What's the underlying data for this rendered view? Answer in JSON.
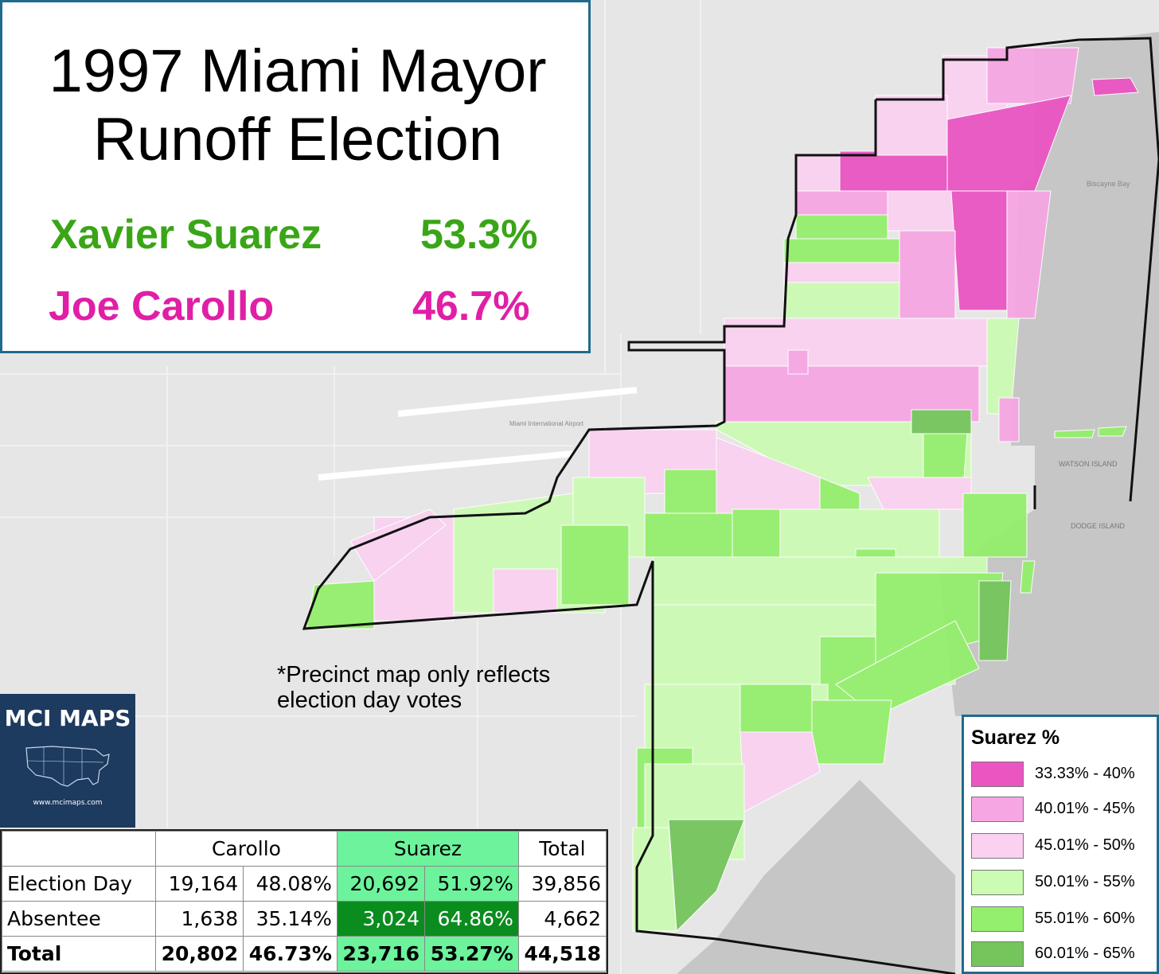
{
  "title": {
    "line1": "1997 Miami Mayor",
    "line2": "Runoff Election"
  },
  "candidates": [
    {
      "name": "Xavier Suarez",
      "pct": "53.3%",
      "color": "#3aa517"
    },
    {
      "name": "Joe Carollo",
      "pct": "46.7%",
      "color": "#e01fa6"
    }
  ],
  "note": {
    "line1": "*Precinct map only reflects",
    "line2": "election day votes"
  },
  "logo": {
    "title": "MCI MAPS",
    "url": "www.mcimaps.com"
  },
  "results_table": {
    "headers": [
      "Carollo",
      "Suarez",
      "Total"
    ],
    "rows": [
      {
        "label": "Election Day",
        "carollo_votes": "19,164",
        "carollo_pct": "48.08%",
        "suarez_votes": "20,692",
        "suarez_pct": "51.92%",
        "total": "39,856"
      },
      {
        "label": "Absentee",
        "carollo_votes": "1,638",
        "carollo_pct": "35.14%",
        "suarez_votes": "3,024",
        "suarez_pct": "64.86%",
        "total": "4,662"
      },
      {
        "label": "Total",
        "carollo_votes": "20,802",
        "carollo_pct": "46.73%",
        "suarez_votes": "23,716",
        "suarez_pct": "53.27%",
        "total": "44,518"
      }
    ]
  },
  "legend": {
    "title": "Suarez  %",
    "items": [
      {
        "label": "33.33% - 40%",
        "color": "#ea55c2"
      },
      {
        "label": "40.01% - 45%",
        "color": "#f6a6e3"
      },
      {
        "label": "45.01% - 50%",
        "color": "#fad1f0"
      },
      {
        "label": "50.01% - 55%",
        "color": "#ccfbb4"
      },
      {
        "label": "55.01% - 60%",
        "color": "#94ef6c"
      },
      {
        "label": "60.01% - 65%",
        "color": "#74c55c"
      }
    ]
  },
  "map_labels": {
    "biscayne_bay": "Biscayne Bay",
    "watson_island": "WATSON ISLAND",
    "dodge_island": "DODGE ISLAND",
    "airport": "Miami International Airport"
  }
}
